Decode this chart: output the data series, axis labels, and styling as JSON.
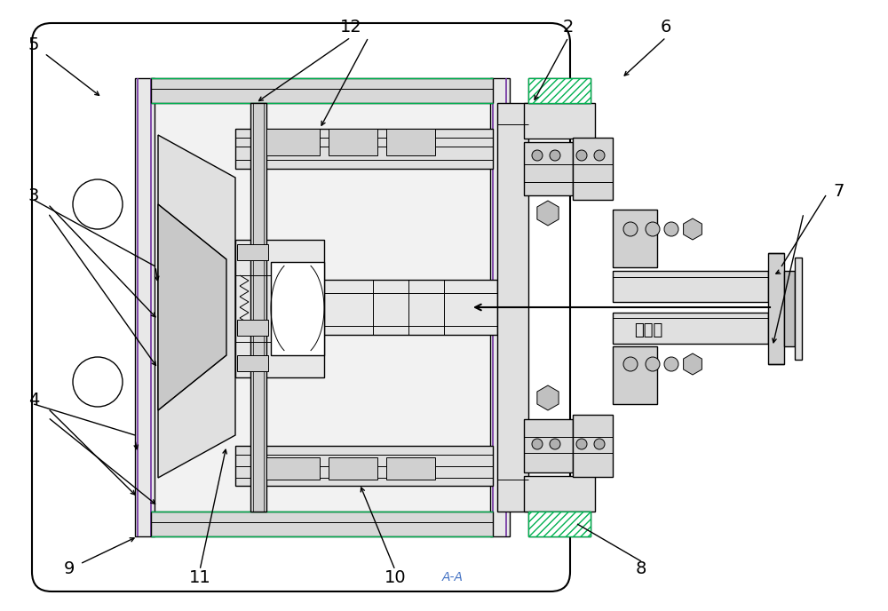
{
  "figure_width": 10.0,
  "figure_height": 6.88,
  "dpi": 100,
  "bg_color": "#ffffff",
  "lc": "#000000",
  "purple_lc": "#7030a0",
  "green_lc": "#00b050",
  "aa_color": "#4472c4",
  "neutron_label": "中子束",
  "aa_label": "A-A",
  "labels": [
    "2",
    "3",
    "4",
    "5",
    "6",
    "7",
    "8",
    "9",
    "10",
    "11",
    "12"
  ]
}
